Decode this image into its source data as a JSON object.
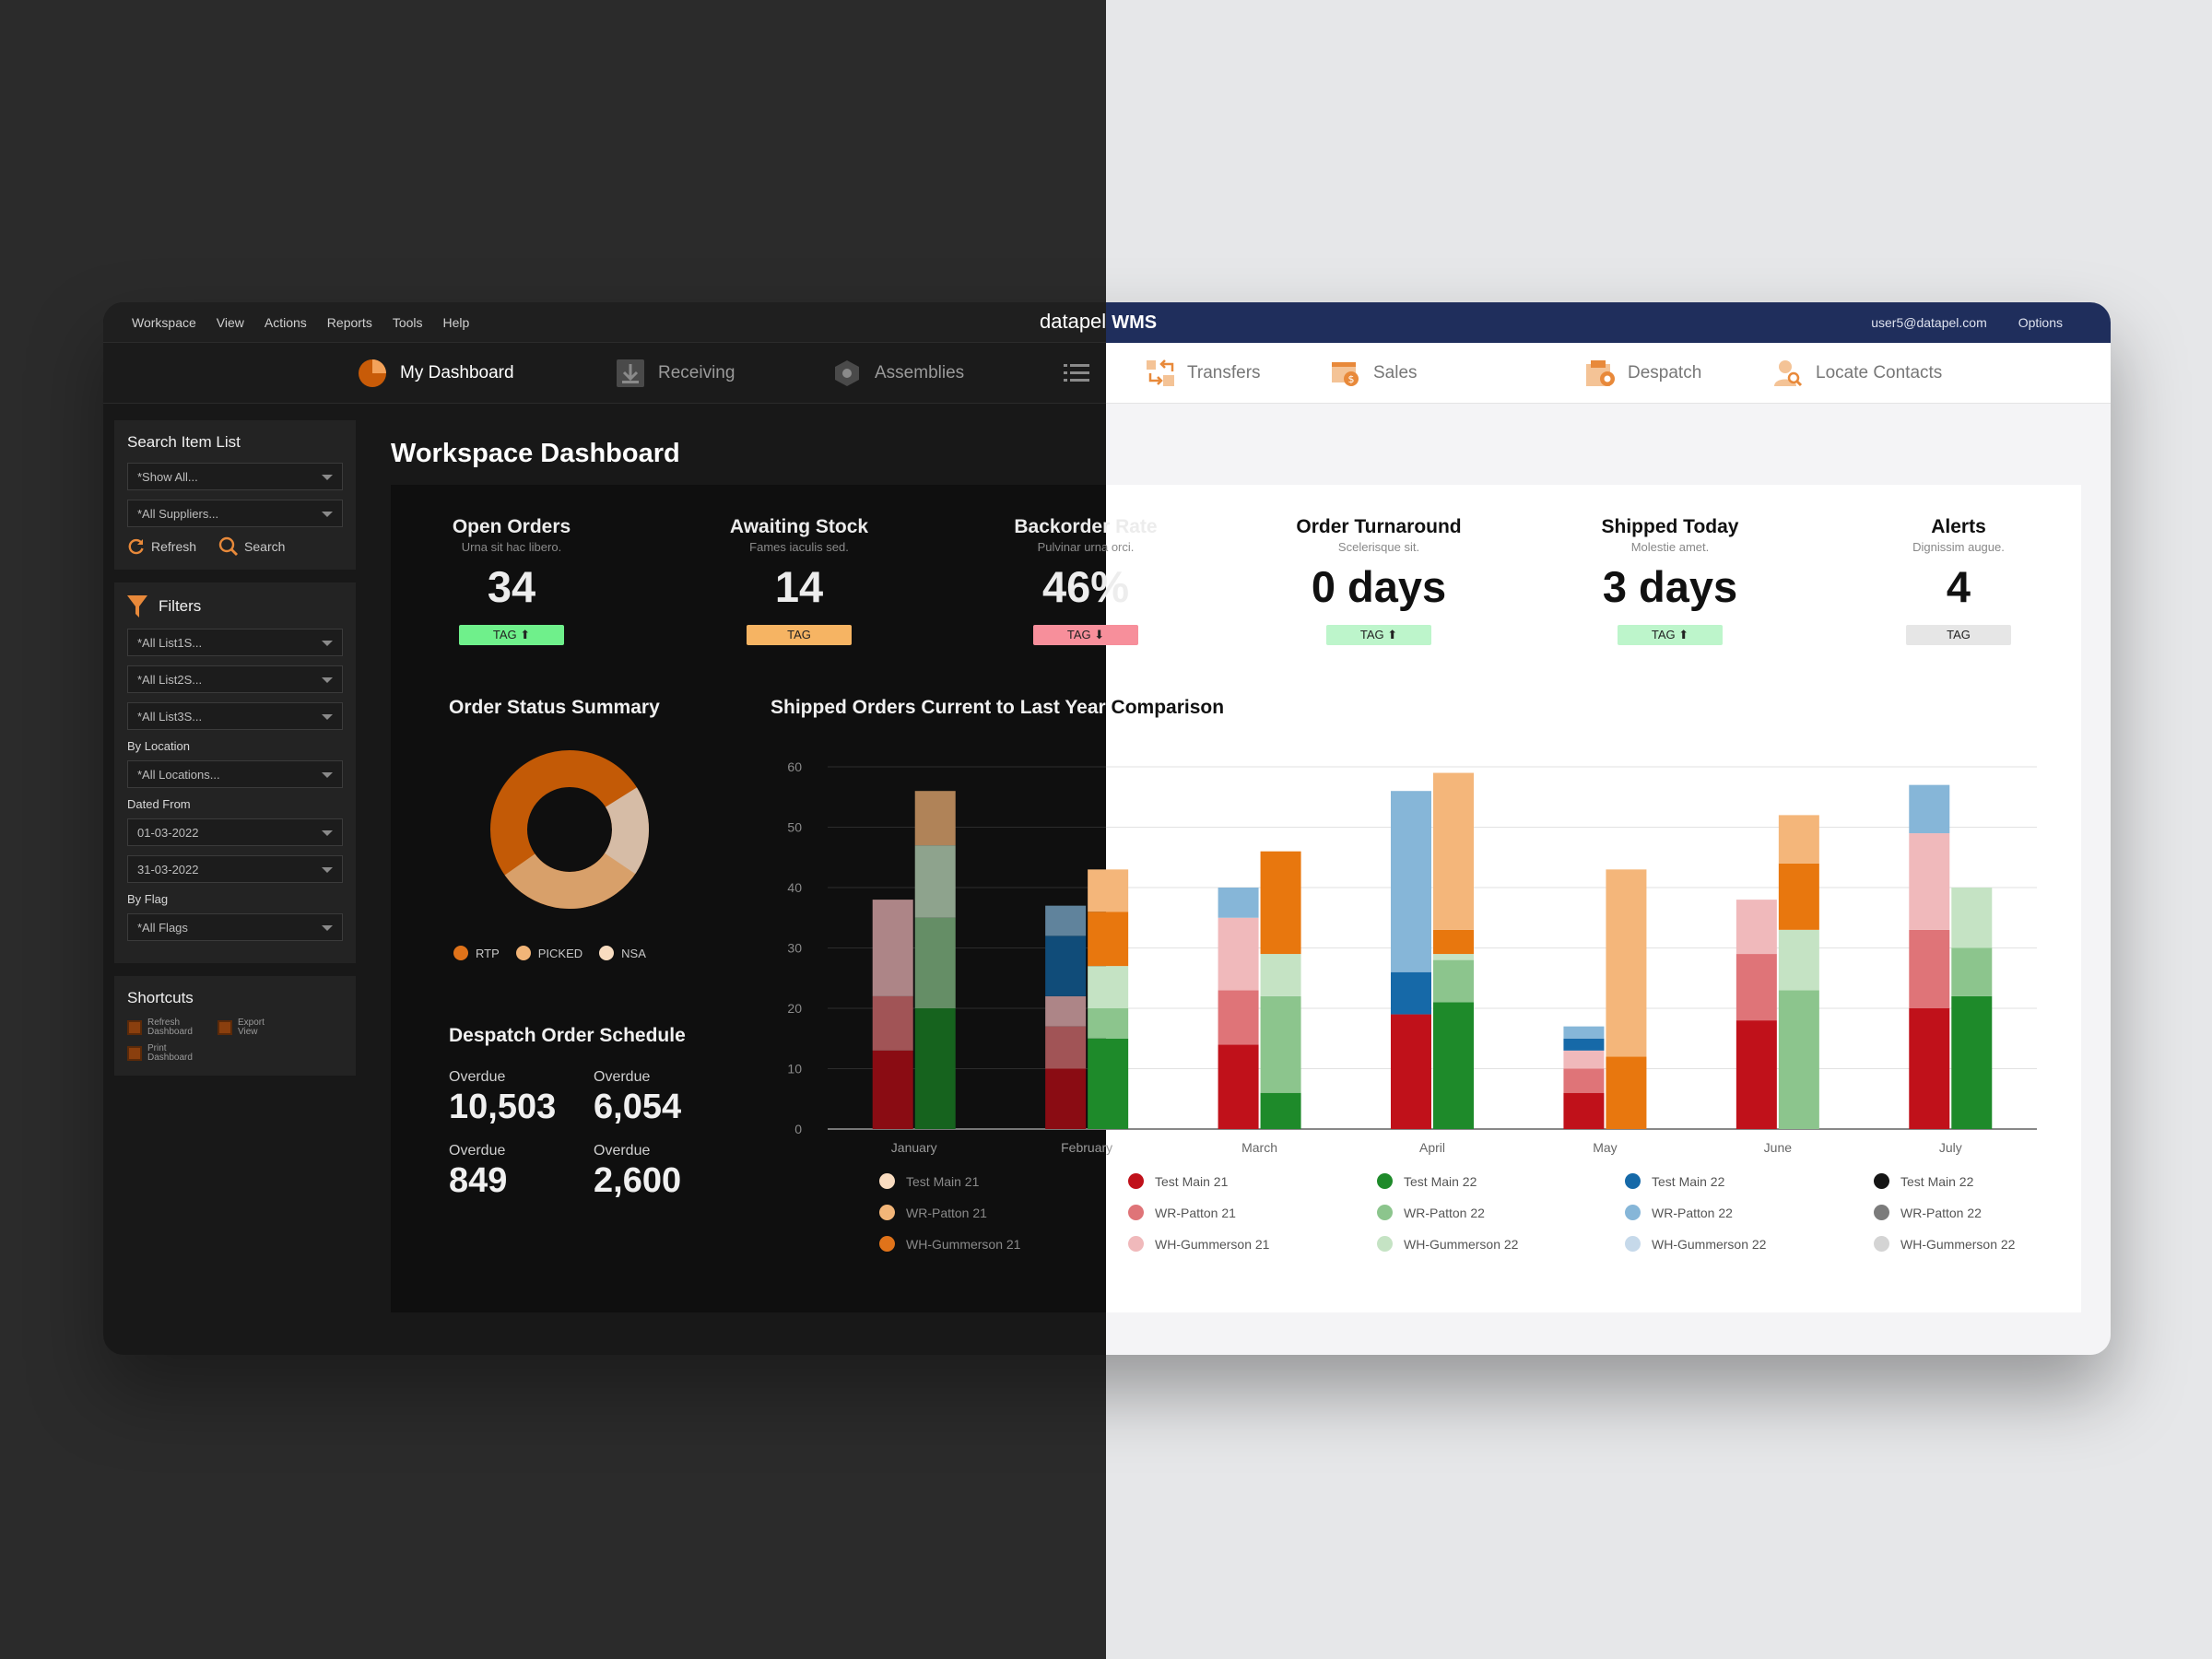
{
  "app": {
    "brand_light": "datapel",
    "brand_bold": "WMS",
    "menu": [
      "Workspace",
      "View",
      "Actions",
      "Reports",
      "Tools",
      "Help"
    ],
    "user": "user5@datapel.com",
    "options": "Options"
  },
  "nav": {
    "items": [
      "My Dashboard",
      "Receiving",
      "Assemblies",
      "Transfers",
      "Sales",
      "Despatch",
      "Locate Contacts"
    ]
  },
  "sidebar": {
    "search": {
      "title": "Search Item List",
      "select1": "*Show All...",
      "select2": "*All Suppliers...",
      "refresh": "Refresh",
      "search": "Search"
    },
    "filters": {
      "title": "Filters",
      "list1": "*All List1S...",
      "list2": "*All List2S...",
      "list3": "*All List3S...",
      "by_location": "By Location",
      "locations": "*All Locations...",
      "dated_from": "Dated From",
      "date_from": "01-03-2022",
      "date_to": "31-03-2022",
      "by_flag": "By Flag",
      "flags": "*All Flags"
    },
    "shortcuts": {
      "title": "Shortcuts",
      "refresh_1": "Refresh",
      "refresh_2": "Dashboard",
      "export_1": "Export",
      "export_2": "View",
      "print_1": "Print",
      "print_2": "Dashboard"
    }
  },
  "main": {
    "title": "Workspace Dashboard",
    "kpis": [
      {
        "title": "Open Orders",
        "sub": "Urna sit hac libero.",
        "value": "34",
        "tag": "TAG ⬆",
        "tag_color": "#6ff08b"
      },
      {
        "title": "Awaiting Stock",
        "sub": "Fames iaculis sed.",
        "value": "14",
        "tag": "TAG",
        "tag_color": "#f6b463"
      },
      {
        "title": "Backorder Rate",
        "sub": "Pulvinar urna orci.",
        "value": "46%",
        "tag": "TAG ⬇",
        "tag_color": "#f78f9b"
      },
      {
        "title": "Order Turnaround",
        "sub": "Scelerisque sit.",
        "value": "0 days",
        "tag": "TAG ⬆",
        "tag_color": "#bdf5cb"
      },
      {
        "title": "Shipped Today",
        "sub": "Molestie amet.",
        "value": "3 days",
        "tag": "TAG ⬆",
        "tag_color": "#bdf5cb"
      },
      {
        "title": "Alerts",
        "sub": "Dignissim augue.",
        "value": "4",
        "tag": "TAG",
        "tag_color": "#e6e6e6"
      }
    ],
    "order_status": {
      "title": "Order Status Summary",
      "legend": [
        {
          "label": "RTP",
          "color": "#e0731a"
        },
        {
          "label": "PICKED",
          "color": "#f2b578"
        },
        {
          "label": "NSA",
          "color": "#f8dcc0"
        }
      ]
    },
    "despatch": {
      "title": "Despatch Order Schedule",
      "items": [
        {
          "label": "Overdue",
          "value": "10,503"
        },
        {
          "label": "Overdue",
          "value": "6,054"
        },
        {
          "label": "Overdue",
          "value": "849"
        },
        {
          "label": "Overdue",
          "value": "2,600"
        }
      ]
    }
  },
  "chart_data": {
    "type": "bar",
    "title": "Shipped Orders Current to Last Year Comparison",
    "categories": [
      "January",
      "February",
      "March",
      "April",
      "May",
      "June",
      "July"
    ],
    "ylim": [
      0,
      60
    ],
    "yticks": [
      0,
      10,
      20,
      30,
      40,
      50,
      60
    ],
    "grid": true,
    "stacked": true,
    "series": [
      {
        "name": "Test Main 21",
        "stack": "21",
        "color": "#c0111a",
        "values": [
          13,
          10,
          14,
          19,
          6,
          18,
          20
        ]
      },
      {
        "name": "WR-Patton 21",
        "stack": "21",
        "color": "#df7478",
        "values": [
          9,
          7,
          9,
          0,
          4,
          11,
          13
        ]
      },
      {
        "name": "WH-Gummerson 21",
        "stack": "21",
        "color": "#f0b9bb",
        "values": [
          16,
          5,
          12,
          0,
          3,
          9,
          16
        ]
      },
      {
        "name": "Test Main 22",
        "stack": "21",
        "color": "#1669a8",
        "values": [
          0,
          10,
          0,
          7,
          2,
          0,
          0
        ]
      },
      {
        "name": "WR-Patton 22",
        "stack": "21",
        "color": "#86b6d8",
        "values": [
          0,
          5,
          5,
          30,
          2,
          0,
          8
        ]
      },
      {
        "name": "Test Main 21",
        "stack": "22",
        "color": "#1e8a2a",
        "values": [
          20,
          15,
          6,
          21,
          0,
          0,
          22
        ]
      },
      {
        "name": "WR-Patton 22",
        "stack": "22",
        "color": "#8cc58d",
        "values": [
          15,
          5,
          16,
          7,
          0,
          23,
          8
        ]
      },
      {
        "name": "WH-Gummerson 22",
        "stack": "22",
        "color": "#c5e3c4",
        "values": [
          12,
          7,
          7,
          1,
          0,
          10,
          10
        ]
      },
      {
        "name": "WH-Gummerson 21",
        "stack": "22",
        "color": "#e8770e",
        "values": [
          0,
          9,
          17,
          4,
          12,
          11,
          0
        ]
      },
      {
        "name": "WR-Patton 21",
        "stack": "22",
        "color": "#f4b67a",
        "values": [
          9,
          7,
          0,
          26,
          31,
          8,
          0
        ]
      }
    ],
    "legend": [
      {
        "label": "Test Main 21",
        "color": "#f9dcc0"
      },
      {
        "label": "WR-Patton 21",
        "color": "#f2b578"
      },
      {
        "label": "WH-Gummerson 21",
        "color": "#e0731a"
      },
      {
        "label": "Test Main 21",
        "color": "#c0111a"
      },
      {
        "label": "WR-Patton 21",
        "color": "#df7478"
      },
      {
        "label": "WH-Gummerson 21",
        "color": "#f0b9bb"
      },
      {
        "label": "Test Main 22",
        "color": "#1e8a2a"
      },
      {
        "label": "WR-Patton 22",
        "color": "#8cc58d"
      },
      {
        "label": "WH-Gummerson 22",
        "color": "#c5e3c4"
      },
      {
        "label": "Test Main 22",
        "color": "#1669a8"
      },
      {
        "label": "WR-Patton 22",
        "color": "#86b6d8"
      },
      {
        "label": "WH-Gummerson 22",
        "color": "#c6d9ea"
      },
      {
        "label": "Test Main 22",
        "color": "#151515"
      },
      {
        "label": "WR-Patton 22",
        "color": "#7b7b7b"
      },
      {
        "label": "WH-Gummerson 22",
        "color": "#d4d4d4"
      }
    ]
  }
}
